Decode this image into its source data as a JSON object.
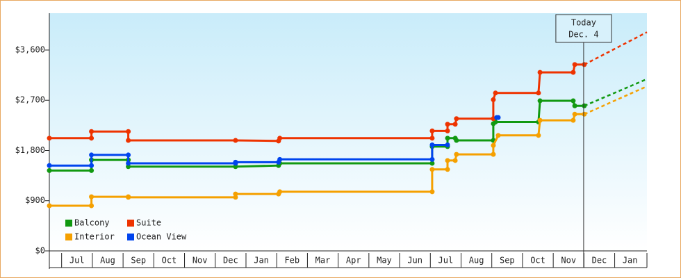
{
  "chart_data": {
    "type": "line",
    "categories": [
      "Jul",
      "Aug",
      "Sep",
      "Oct",
      "Nov",
      "Dec",
      "Jan",
      "Feb",
      "Mar",
      "Apr",
      "May",
      "Jun",
      "Jul",
      "Aug",
      "Sep",
      "Oct",
      "Nov",
      "Dec",
      "Jan"
    ],
    "xlim": [
      -0.4,
      19.05
    ],
    "ylim": [
      0,
      4260
    ],
    "yticks": [
      {
        "value": 0,
        "label": "$0"
      },
      {
        "value": 900,
        "label": "$900"
      },
      {
        "value": 1800,
        "label": "$1,800"
      },
      {
        "value": 2700,
        "label": "$2,700"
      },
      {
        "value": 3600,
        "label": "$3,600"
      }
    ],
    "legend": "bottom-left",
    "annotation": {
      "lines": [
        "Today",
        "Dec. 4"
      ],
      "x": 16.99
    },
    "series": [
      {
        "name": "Balcony",
        "color": "#119911",
        "x": [
          -0.4,
          0.97,
          0.97,
          2.17,
          2.17,
          5.66,
          7.06,
          7.1,
          12.06,
          12.06,
          12.56,
          12.56,
          12.81,
          12.85,
          14.05,
          14.05,
          14.12,
          15.52,
          15.57,
          16.65,
          16.7,
          17.01
        ],
        "values": [
          1440,
          1440,
          1630,
          1630,
          1510,
          1510,
          1530,
          1570,
          1570,
          1870,
          1870,
          2020,
          2020,
          1980,
          1980,
          2280,
          2310,
          2310,
          2690,
          2690,
          2600,
          2600
        ],
        "forecast": {
          "x": [
            17.01,
            19.05
          ],
          "values": [
            2600,
            3080
          ]
        }
      },
      {
        "name": "Suite",
        "color": "#ee3300",
        "x": [
          -0.4,
          0.97,
          0.97,
          2.17,
          2.17,
          5.66,
          7.06,
          7.1,
          12.06,
          12.06,
          12.56,
          12.56,
          12.81,
          12.85,
          14.05,
          14.05,
          14.12,
          15.52,
          15.57,
          16.65,
          16.7,
          17.01
        ],
        "values": [
          2020,
          2020,
          2140,
          2140,
          1980,
          1980,
          1970,
          2020,
          2020,
          2150,
          2150,
          2270,
          2270,
          2370,
          2370,
          2710,
          2830,
          2830,
          3200,
          3200,
          3340,
          3340
        ],
        "forecast": {
          "x": [
            17.01,
            19.05
          ],
          "values": [
            3340,
            3920
          ]
        }
      },
      {
        "name": "Interior",
        "color": "#f5a000",
        "x": [
          -0.4,
          0.97,
          0.97,
          2.17,
          2.17,
          5.66,
          5.66,
          7.06,
          7.1,
          12.06,
          12.06,
          12.56,
          12.56,
          12.81,
          12.85,
          14.05,
          14.05,
          14.21,
          15.52,
          15.57,
          16.65,
          16.7,
          17.01
        ],
        "values": [
          810,
          810,
          970,
          970,
          960,
          960,
          1020,
          1020,
          1060,
          1060,
          1460,
          1460,
          1620,
          1620,
          1730,
          1730,
          1890,
          2070,
          2070,
          2340,
          2340,
          2450,
          2450
        ],
        "forecast": {
          "x": [
            17.01,
            19.05
          ],
          "values": [
            2450,
            2950
          ]
        }
      },
      {
        "name": "Ocean View",
        "color": "#0044ee",
        "x": [
          -0.4,
          0.97,
          0.97,
          2.17,
          2.17,
          5.66,
          5.66,
          7.06,
          7.1,
          12.06,
          12.06,
          12.56,
          12.6,
          14.16,
          14.21
        ],
        "values": [
          1530,
          1530,
          1720,
          1720,
          1570,
          1570,
          1590,
          1590,
          1640,
          1640,
          1900,
          1900,
          null,
          2390,
          2390
        ]
      }
    ]
  }
}
